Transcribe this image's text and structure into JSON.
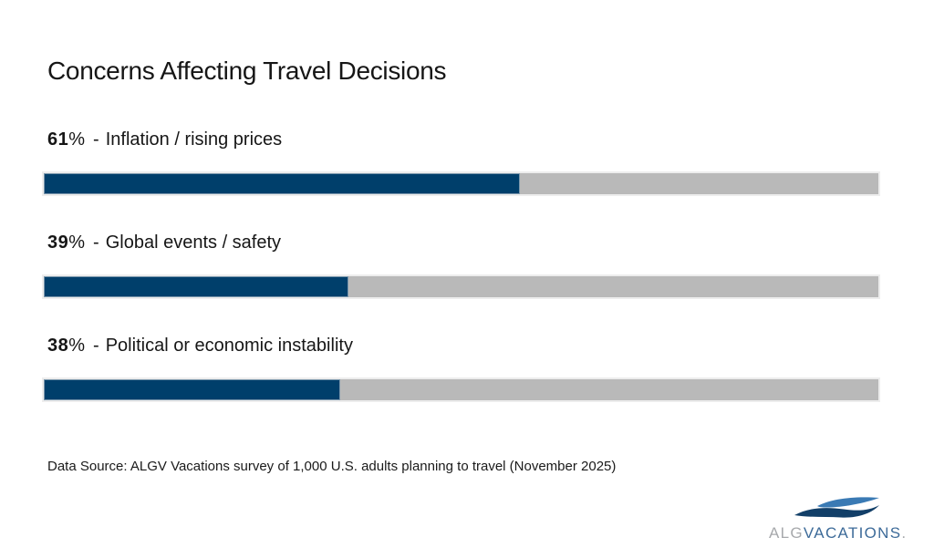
{
  "title": "Concerns Affecting Travel Decisions",
  "chart_data": {
    "type": "bar",
    "orientation": "horizontal",
    "title": "Concerns Affecting Travel Decisions",
    "categories": [
      "Inflation / rising prices",
      "Global events / safety",
      "Political or economic instability"
    ],
    "values": [
      61,
      39,
      38
    ],
    "unit": "%",
    "separator": "-",
    "xlim": [
      0,
      100
    ],
    "track_scale_max": 107,
    "grid": false,
    "legend": false,
    "bar_color": "#003f6b",
    "track_color": "#b9b9b9"
  },
  "source": "Data Source: ALGV Vacations survey of 1,000 U.S. adults planning to travel (November 2025)",
  "logo": {
    "prefix": "ALG",
    "name": "VACATIONS",
    "suffix": ".",
    "icon": "wave-icon",
    "wave_top_color": "#3a7ab4",
    "wave_bottom_color": "#123f68",
    "gray_color": "#a7a9ac",
    "blue_color": "#3d6b99"
  },
  "colors": {
    "background": "#ffffff",
    "text": "#161616",
    "bar_fill": "#003f6b",
    "bar_fill_border": "#7b97ac",
    "bar_track": "#b9b9b9",
    "bar_track_border": "#ededed"
  }
}
